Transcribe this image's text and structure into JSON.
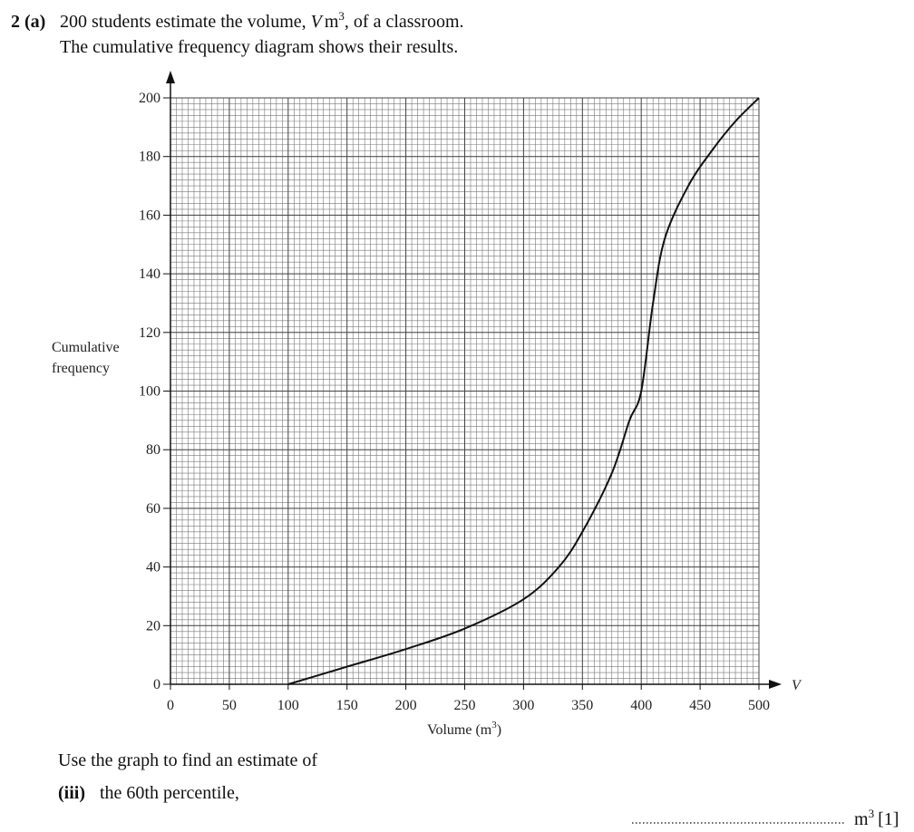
{
  "question": {
    "number": "2",
    "part": "(a)",
    "line1": [
      "200 students estimate the volume, ",
      "V",
      "m",
      "3",
      ", of a classroom."
    ],
    "line2": "The cumulative frequency diagram shows their results.",
    "prompt": "Use the graph to find an estimate of",
    "subpart": "(iii)",
    "subpart_text": "the 60th percentile,",
    "answer_unit": [
      "m",
      "3"
    ],
    "marks": "[1]"
  },
  "chart_data": {
    "type": "line",
    "x_label": [
      "Volume (m",
      "3",
      ")"
    ],
    "y_label": [
      "Cumulative",
      "frequency"
    ],
    "x_axis_symbol": "V",
    "x": [
      100,
      150,
      200,
      250,
      300,
      330,
      350,
      375,
      390,
      400,
      410,
      420,
      440,
      460,
      480,
      500
    ],
    "series": [
      {
        "name": "Cumulative frequency",
        "color": "#111111",
        "values": [
          0,
          6,
          12,
          19,
          29,
          40,
          52,
          72,
          90,
          100,
          130,
          152,
          170,
          182,
          192,
          200
        ]
      }
    ],
    "xlim": [
      0,
      500
    ],
    "ylim": [
      0,
      200
    ],
    "xticks": [
      0,
      50,
      100,
      150,
      200,
      250,
      300,
      350,
      400,
      450,
      500
    ],
    "yticks": [
      0,
      20,
      40,
      60,
      80,
      100,
      120,
      140,
      160,
      180,
      200
    ],
    "grid": true
  }
}
